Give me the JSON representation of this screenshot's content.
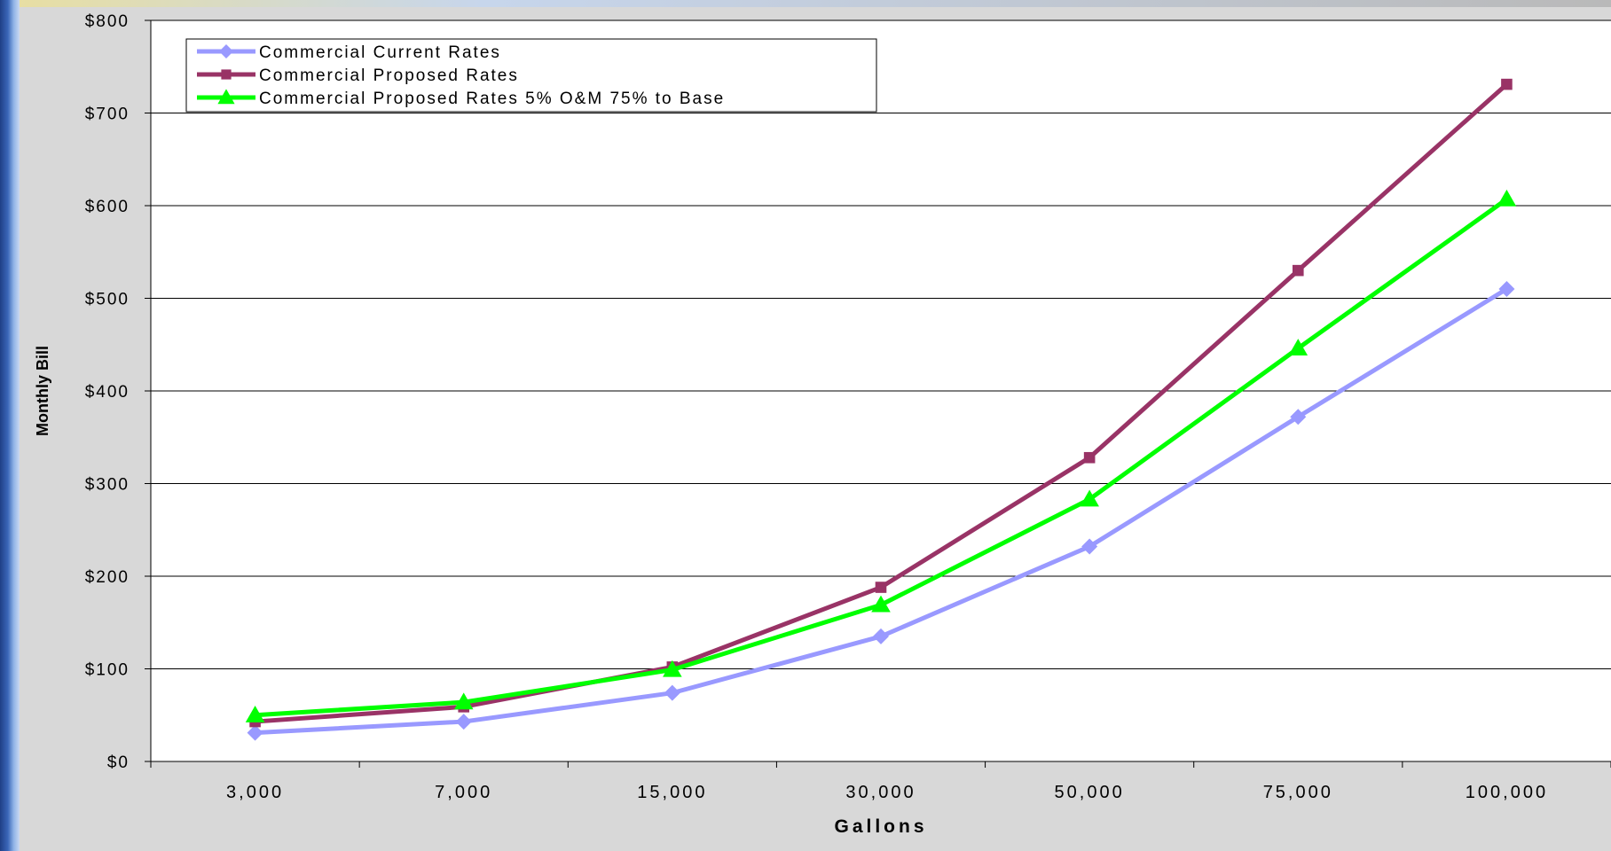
{
  "chart_data": {
    "type": "line",
    "title": "",
    "xlabel": "Gallons",
    "ylabel": "Monthly Bill",
    "categories": [
      "3,000",
      "7,000",
      "15,000",
      "30,000",
      "50,000",
      "75,000",
      "100,000"
    ],
    "y_ticks": [
      "$0",
      "$100",
      "$200",
      "$300",
      "$400",
      "$500",
      "$600",
      "$700",
      "$800"
    ],
    "ylim": [
      0,
      800
    ],
    "grid": true,
    "legend_position": "top-left",
    "series": [
      {
        "name": "Commercial Current Rates",
        "color": "#9999ff",
        "marker": "diamond",
        "values": [
          31,
          43,
          74,
          135,
          232,
          372,
          510
        ]
      },
      {
        "name": "Commercial Proposed Rates",
        "color": "#993366",
        "marker": "square",
        "values": [
          43,
          59,
          102,
          188,
          328,
          530,
          731
        ]
      },
      {
        "name": "Commercial Proposed Rates 5% O&M 75% to Base",
        "color": "#00ff00",
        "marker": "triangle",
        "values": [
          50,
          64,
          99,
          169,
          283,
          446,
          607
        ]
      }
    ]
  }
}
